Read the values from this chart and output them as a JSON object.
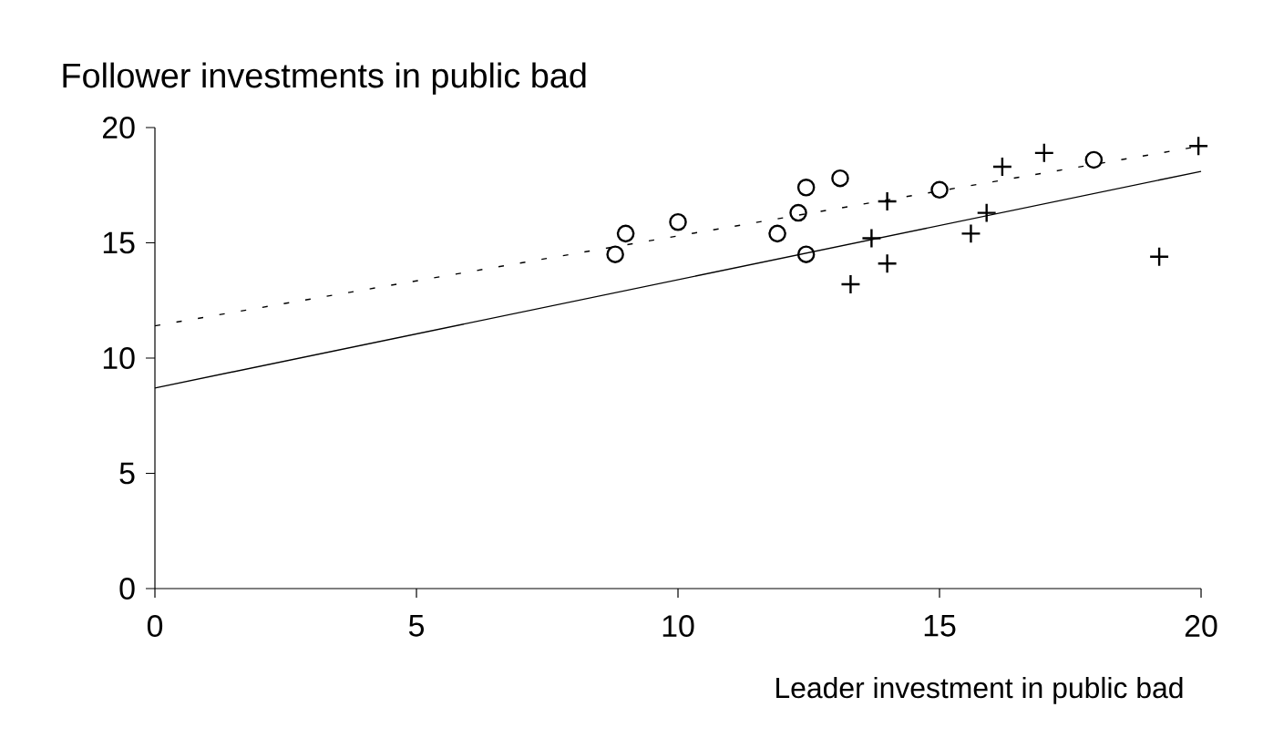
{
  "chart_data": {
    "type": "scatter",
    "title": "Follower investments in public bad",
    "xlabel": "Leader investment in public bad",
    "xlim": [
      0,
      20
    ],
    "ylim": [
      0,
      20
    ],
    "xticks": [
      0,
      5,
      10,
      15,
      20
    ],
    "yticks": [
      0,
      5,
      10,
      15,
      20
    ],
    "series": [
      {
        "marker": "circle",
        "color": "#000000",
        "x": [
          8.8,
          9.0,
          10.0,
          11.9,
          12.3,
          12.45,
          12.45,
          13.1,
          15.0,
          17.95
        ],
        "values": [
          14.5,
          15.4,
          15.9,
          15.4,
          16.3,
          17.4,
          14.5,
          17.8,
          17.3,
          18.6
        ]
      },
      {
        "marker": "cross",
        "color": "#000000",
        "x": [
          13.3,
          13.7,
          14.0,
          14.0,
          15.6,
          15.9,
          16.2,
          17.0,
          19.2,
          19.95
        ],
        "values": [
          13.2,
          15.2,
          16.8,
          14.1,
          15.4,
          16.3,
          18.3,
          18.9,
          14.4,
          19.2
        ]
      },
      {
        "type": "line",
        "line_style": "solid",
        "color": "#000000",
        "x": [
          0,
          20
        ],
        "values": [
          8.7,
          18.1
        ]
      },
      {
        "type": "line",
        "line_style": "dashed",
        "color": "#000000",
        "x": [
          0,
          20
        ],
        "values": [
          11.4,
          19.2
        ]
      }
    ]
  }
}
